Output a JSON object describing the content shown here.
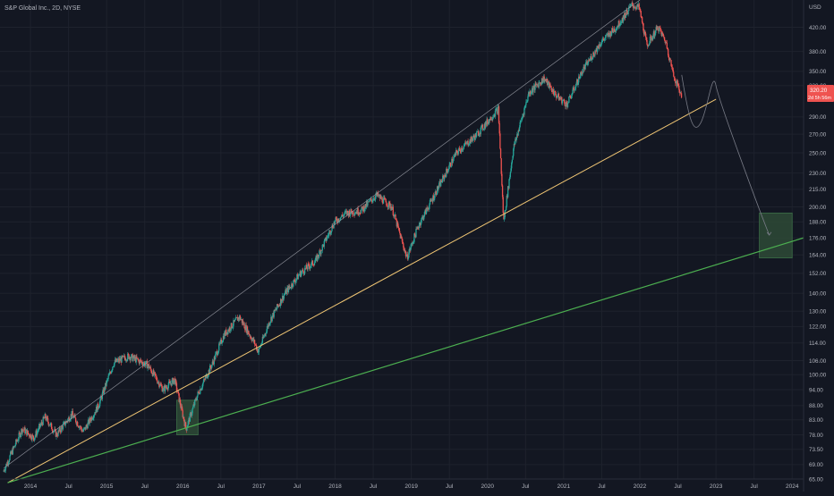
{
  "header": {
    "symbol_title": "S&P Global Inc., 2D, NYSE"
  },
  "price_axis": {
    "currency": "USD",
    "ticks": [
      65.0,
      69.0,
      73.5,
      78.0,
      83.0,
      88.0,
      94.0,
      100.0,
      106.0,
      114.0,
      122.0,
      130.0,
      140.0,
      152.0,
      164.0,
      176.0,
      188.0,
      200.0,
      215.0,
      230.0,
      250.0,
      270.0,
      290.0,
      330.0,
      350.0,
      380.0,
      420.0
    ],
    "tick_labels": [
      "65.00",
      "69.00",
      "73.50",
      "78.00",
      "83.00",
      "88.00",
      "94.00",
      "100.00",
      "106.00",
      "114.00",
      "122.00",
      "130.00",
      "140.00",
      "152.00",
      "164.00",
      "176.00",
      "188.00",
      "200.00",
      "215.00",
      "230.00",
      "250.00",
      "270.00",
      "290.00",
      "330.00",
      "350.00",
      "380.00",
      "420.00"
    ],
    "last_price_label": "320.20",
    "countdown_label": "2d 5h 56m"
  },
  "time_axis": {
    "ticks": [
      {
        "t": 2014.0,
        "label": "2014"
      },
      {
        "t": 2014.5,
        "label": "Jul"
      },
      {
        "t": 2015.0,
        "label": "2015"
      },
      {
        "t": 2015.5,
        "label": "Jul"
      },
      {
        "t": 2016.0,
        "label": "2016"
      },
      {
        "t": 2016.5,
        "label": "Jul"
      },
      {
        "t": 2017.0,
        "label": "2017"
      },
      {
        "t": 2017.5,
        "label": "Jul"
      },
      {
        "t": 2018.0,
        "label": "2018"
      },
      {
        "t": 2018.5,
        "label": "Jul"
      },
      {
        "t": 2019.0,
        "label": "2019"
      },
      {
        "t": 2019.5,
        "label": "Jul"
      },
      {
        "t": 2020.0,
        "label": "2020"
      },
      {
        "t": 2020.5,
        "label": "Jul"
      },
      {
        "t": 2021.0,
        "label": "2021"
      },
      {
        "t": 2021.5,
        "label": "Jul"
      },
      {
        "t": 2022.0,
        "label": "2022"
      },
      {
        "t": 2022.5,
        "label": "Jul"
      },
      {
        "t": 2023.0,
        "label": "2023"
      },
      {
        "t": 2023.5,
        "label": "Jul"
      },
      {
        "t": 2024.0,
        "label": "2024"
      }
    ]
  },
  "colors": {
    "background": "#131722",
    "grid": "#1e222d",
    "text": "#b2b5be",
    "up_candle": "#26a69a",
    "down_candle": "#ef5350",
    "upper_channel": "#9598a1",
    "mid_trendline": "#f0c674",
    "lower_trendline": "#4caf50",
    "projection_path": "#787b86",
    "box_fill": "#2e4a36",
    "box_border": "#3c6e47",
    "price_badge": "#ef5350"
  },
  "chart_data": {
    "type": "candlestick",
    "title": "S&P Global Inc., 2D, NYSE",
    "y_scale": "log",
    "ylim": [
      65,
      470
    ],
    "xlim": [
      2013.6,
      2024.15
    ],
    "x_unit": "year",
    "y_unit": "USD",
    "grid": true,
    "price_path": [
      [
        2013.65,
        67
      ],
      [
        2013.9,
        80
      ],
      [
        2014.05,
        77
      ],
      [
        2014.2,
        84
      ],
      [
        2014.35,
        78
      ],
      [
        2014.55,
        85
      ],
      [
        2014.7,
        79
      ],
      [
        2014.9,
        88
      ],
      [
        2015.1,
        105
      ],
      [
        2015.3,
        108
      ],
      [
        2015.55,
        104
      ],
      [
        2015.75,
        94
      ],
      [
        2015.9,
        98
      ],
      [
        2016.05,
        80
      ],
      [
        2016.2,
        92
      ],
      [
        2016.4,
        105
      ],
      [
        2016.55,
        118
      ],
      [
        2016.75,
        127
      ],
      [
        2016.95,
        114
      ],
      [
        2017.0,
        110
      ],
      [
        2017.15,
        125
      ],
      [
        2017.35,
        140
      ],
      [
        2017.55,
        152
      ],
      [
        2017.75,
        160
      ],
      [
        2018.0,
        188
      ],
      [
        2018.15,
        195
      ],
      [
        2018.35,
        197
      ],
      [
        2018.55,
        210
      ],
      [
        2018.75,
        200
      ],
      [
        2018.95,
        162
      ],
      [
        2019.1,
        185
      ],
      [
        2019.35,
        215
      ],
      [
        2019.6,
        250
      ],
      [
        2019.85,
        268
      ],
      [
        2020.15,
        300
      ],
      [
        2020.22,
        188
      ],
      [
        2020.35,
        255
      ],
      [
        2020.55,
        320
      ],
      [
        2020.75,
        340
      ],
      [
        2020.9,
        318
      ],
      [
        2021.05,
        305
      ],
      [
        2021.25,
        350
      ],
      [
        2021.5,
        395
      ],
      [
        2021.7,
        420
      ],
      [
        2021.9,
        460
      ],
      [
        2022.0,
        455
      ],
      [
        2022.1,
        390
      ],
      [
        2022.25,
        420
      ],
      [
        2022.35,
        395
      ],
      [
        2022.45,
        345
      ],
      [
        2022.55,
        318
      ]
    ],
    "annotations": {
      "upper_channel_line": [
        [
          2013.65,
          68
        ],
        [
          2022.0,
          470
        ]
      ],
      "mid_trendline": [
        [
          2013.7,
          64
        ],
        [
          2023.0,
          312
        ]
      ],
      "lower_trendline": [
        [
          2013.7,
          64
        ],
        [
          2024.15,
          176
        ]
      ],
      "projection_path": [
        [
          2022.55,
          345
        ],
        [
          2022.8,
          283
        ],
        [
          2023.0,
          330
        ],
        [
          2023.7,
          178
        ]
      ],
      "buy_zone_2016": {
        "t": [
          2015.92,
          2016.2
        ],
        "price": [
          78,
          90
        ]
      },
      "target_zone": {
        "t": [
          2023.57,
          2024.0
        ],
        "price": [
          162,
          195
        ]
      }
    }
  }
}
